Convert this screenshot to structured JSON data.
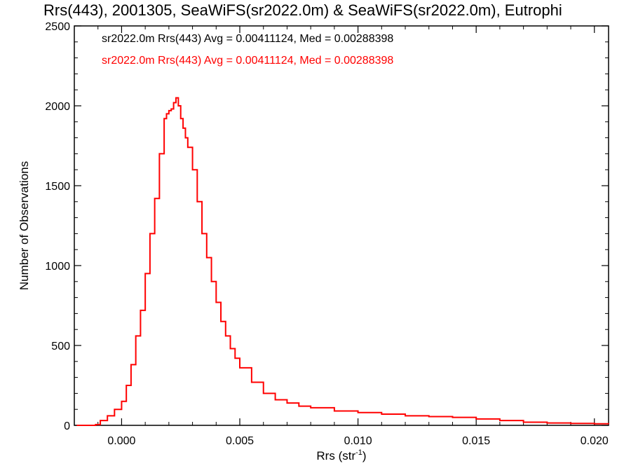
{
  "chart_data": {
    "type": "line",
    "title": "Rrs(443), 2001305, SeaWiFS(sr2022.0m) & SeaWiFS(sr2022.0m), Eutrophi",
    "xlabel": "Rrs (str",
    "xlabel_sup": "-1",
    "xlabel_close": ")",
    "ylabel": "Number of Observations",
    "xlim": [
      -0.002,
      0.0206
    ],
    "ylim": [
      0,
      2500
    ],
    "x_ticks": [
      {
        "value": 0.0,
        "label": "0.000"
      },
      {
        "value": 0.005,
        "label": "0.005"
      },
      {
        "value": 0.01,
        "label": "0.010"
      },
      {
        "value": 0.015,
        "label": "0.015"
      },
      {
        "value": 0.02,
        "label": "0.020"
      }
    ],
    "y_ticks": [
      {
        "value": 0,
        "label": "0"
      },
      {
        "value": 500,
        "label": "500"
      },
      {
        "value": 1000,
        "label": "1000"
      },
      {
        "value": 1500,
        "label": "1500"
      },
      {
        "value": 2000,
        "label": "2000"
      },
      {
        "value": 2500,
        "label": "2500"
      }
    ],
    "annotations": [
      {
        "text": "sr2022.0m Rrs(443) Avg = 0.00411124, Med = 0.00288398",
        "color": "#000000"
      },
      {
        "text": "sr2022.0m Rrs(443) Avg = 0.00411124, Med = 0.00288398",
        "color": "#ff0000"
      }
    ],
    "grid": false,
    "series": [
      {
        "color": "#ff0000",
        "x": [
          -0.0019,
          -0.0015,
          -0.0011,
          -0.0009,
          -0.0006,
          -0.0003,
          0.0,
          0.0002,
          0.0004,
          0.0006,
          0.0008,
          0.001,
          0.0012,
          0.0014,
          0.0016,
          0.0018,
          0.0019,
          0.002,
          0.0021,
          0.0022,
          0.0023,
          0.0024,
          0.0025,
          0.0026,
          0.0027,
          0.0028,
          0.003,
          0.0032,
          0.0034,
          0.0036,
          0.0038,
          0.004,
          0.0042,
          0.0044,
          0.0046,
          0.0048,
          0.005,
          0.0055,
          0.006,
          0.0065,
          0.007,
          0.0075,
          0.008,
          0.009,
          0.01,
          0.011,
          0.012,
          0.013,
          0.014,
          0.015,
          0.016,
          0.017,
          0.018,
          0.019,
          0.02,
          0.0206
        ],
        "y": [
          0,
          0,
          5,
          30,
          60,
          100,
          150,
          250,
          380,
          560,
          720,
          950,
          1200,
          1420,
          1700,
          1920,
          1950,
          1970,
          1980,
          2020,
          2050,
          2000,
          1920,
          1860,
          1800,
          1740,
          1600,
          1400,
          1200,
          1050,
          900,
          770,
          650,
          560,
          480,
          420,
          360,
          270,
          200,
          160,
          140,
          120,
          110,
          90,
          80,
          70,
          60,
          55,
          50,
          40,
          30,
          20,
          15,
          12,
          10,
          8
        ]
      }
    ]
  }
}
